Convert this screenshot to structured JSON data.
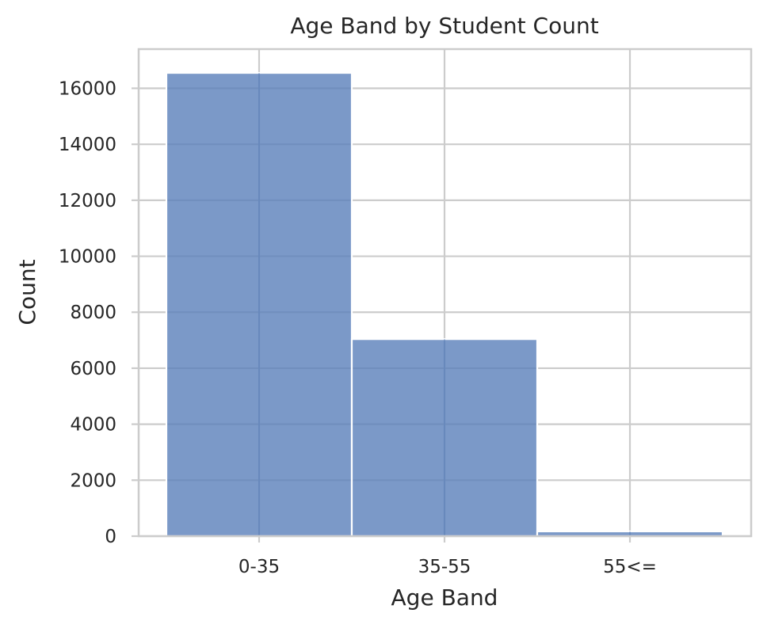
{
  "chart_data": {
    "type": "bar",
    "title": "Age Band by Student Count",
    "xlabel": "Age Band",
    "ylabel": "Count",
    "categories": [
      "0-35",
      "35-55",
      "55<="
    ],
    "values": [
      16550,
      7040,
      170
    ],
    "ylim": [
      0,
      17400
    ],
    "yticks": [
      0,
      2000,
      4000,
      6000,
      8000,
      10000,
      12000,
      14000,
      16000
    ],
    "grid": true,
    "legend": "none",
    "colors": {
      "bar": "#5a7fba",
      "grid": "#cccccc",
      "text": "#262626"
    },
    "bar_opacity": 0.8
  }
}
